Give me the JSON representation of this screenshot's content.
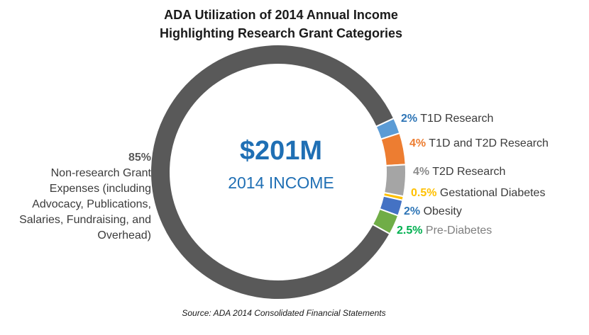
{
  "chart_data": {
    "type": "pie",
    "title": "ADA Utilization of 2014 Annual Income",
    "subtitle": "Highlighting Research Grant Categories",
    "center": {
      "amount": "$201M",
      "label": "2014 INCOME"
    },
    "source": "Source: ADA 2014 Consolidated Financial Statements",
    "slices": [
      {
        "pct_label": "2%",
        "label": "T1D Research",
        "value": 2,
        "color": "#5b9bd5",
        "label_color": "#2e75b6"
      },
      {
        "pct_label": "4%",
        "label": "T1D and T2D Research",
        "value": 4,
        "color": "#ed7d31",
        "label_color": "#ed7d31"
      },
      {
        "pct_label": "4%",
        "label": "T2D Research",
        "value": 4,
        "color": "#a5a5a5",
        "label_color": "#8c8c8c"
      },
      {
        "pct_label": "0.5%",
        "label": "Gestational Diabetes",
        "value": 0.5,
        "color": "#ffc000",
        "label_color": "#ffc000"
      },
      {
        "pct_label": "2%",
        "label": "Obesity",
        "value": 2,
        "color": "#4472c4",
        "label_color": "#2e75b6"
      },
      {
        "pct_label": "2.5%",
        "label": "Pre-Diabetes",
        "value": 2.5,
        "color": "#70ad47",
        "label_color": "#00b050"
      },
      {
        "pct_label": "85%",
        "label": "Non-research Grant Expenses (including Advocacy, Publications, Salaries, Fundraising, and Overhead)",
        "value": 85,
        "color": "#595959",
        "label_color": "#595959"
      }
    ]
  }
}
